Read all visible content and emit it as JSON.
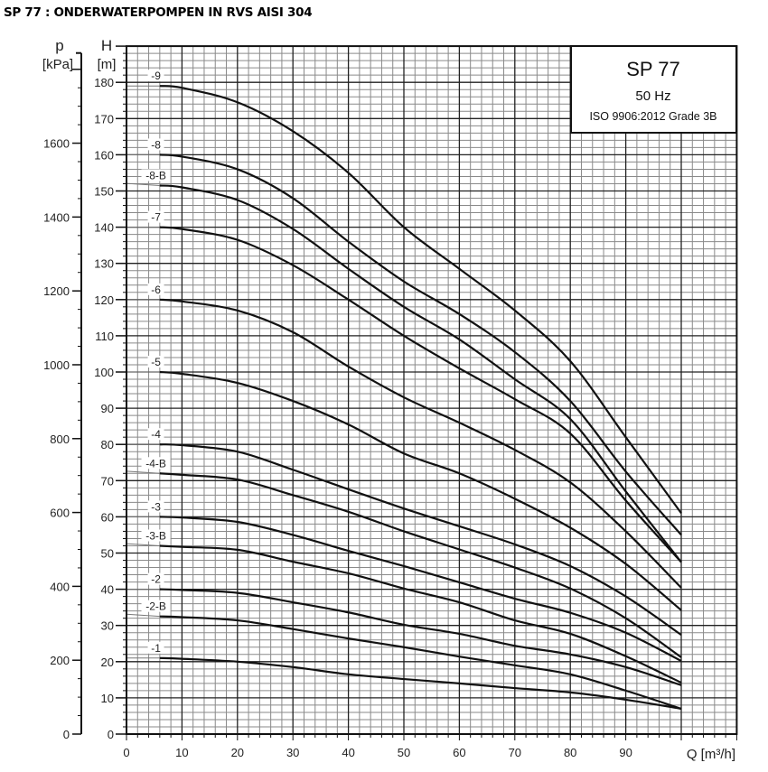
{
  "page_title": "SP 77 : ONDERWATERPOMPEN IN RVS AISI 304",
  "chart_data": {
    "type": "line",
    "title_box": {
      "model": "SP 77",
      "frequency": "50 Hz",
      "standard": "ISO 9906:2012 Grade 3B"
    },
    "xlabel": "Q [m³/h]",
    "ylabel_symbol": "H",
    "ylabel_unit": "[m]",
    "y2label_symbol": "p",
    "y2label_unit": "[kPa]",
    "xlim": [
      0,
      110
    ],
    "ylim": [
      0,
      190
    ],
    "x_ticks": [
      "0",
      "10",
      "20",
      "30",
      "40",
      "50",
      "60",
      "70",
      "80",
      "90"
    ],
    "y_ticks": [
      "0",
      "10",
      "20",
      "30",
      "40",
      "50",
      "60",
      "70",
      "80",
      "90",
      "100",
      "110",
      "120",
      "130",
      "140",
      "150",
      "160",
      "170",
      "180"
    ],
    "y2_ticks": [
      "0",
      "200",
      "400",
      "600",
      "800",
      "1000",
      "1200",
      "1400",
      "1600"
    ],
    "grid": true,
    "x": [
      6,
      10,
      20,
      30,
      40,
      50,
      60,
      70,
      80,
      90,
      100
    ],
    "series": [
      {
        "name": "-9",
        "values": [
          179,
          178.5,
          174.5,
          166.5,
          155,
          140,
          128.5,
          117,
          103,
          82,
          61
        ]
      },
      {
        "name": "-8",
        "values": [
          160,
          159.5,
          156,
          148,
          136,
          125,
          116,
          105.5,
          92,
          72.5,
          55
        ]
      },
      {
        "name": "-8-B",
        "values": [
          151.5,
          151,
          147.5,
          139.5,
          128.5,
          118,
          109,
          98,
          87,
          67,
          47.5
        ]
      },
      {
        "name": "-7",
        "values": [
          140,
          139.5,
          136.5,
          129.5,
          120,
          110,
          101,
          92.5,
          83,
          64.5,
          47.5
        ]
      },
      {
        "name": "-6",
        "values": [
          120,
          119.5,
          117,
          111,
          101.5,
          93,
          86,
          78.5,
          69.5,
          56,
          40.4
        ]
      },
      {
        "name": "-5",
        "values": [
          100,
          99.5,
          97,
          92,
          85.5,
          77.5,
          72,
          65,
          57,
          47,
          34.2
        ]
      },
      {
        "name": "-4",
        "values": [
          80,
          79.8,
          78,
          73,
          67.6,
          62.3,
          57.4,
          52.4,
          46.4,
          38,
          27.4
        ]
      },
      {
        "name": "-4-B",
        "values": [
          72,
          71.6,
          70.3,
          66,
          61.4,
          56,
          51,
          46,
          40.2,
          32,
          21.2
        ]
      },
      {
        "name": "-3",
        "values": [
          60,
          59.8,
          58.6,
          55,
          50.6,
          46.4,
          41.9,
          37.4,
          33.5,
          28,
          20.2
        ]
      },
      {
        "name": "-3-B",
        "values": [
          52,
          51.7,
          50.9,
          47.6,
          44.4,
          40.2,
          36.4,
          31.4,
          27.7,
          21.5,
          14.2
        ]
      },
      {
        "name": "-2",
        "values": [
          40,
          39.8,
          39,
          36.4,
          33.6,
          30.2,
          27.7,
          24.4,
          22,
          18.5,
          13.5
        ]
      },
      {
        "name": "-2-B",
        "values": [
          32.5,
          32.3,
          31.4,
          29,
          26.4,
          24,
          21.4,
          19,
          16.5,
          12,
          7
        ]
      },
      {
        "name": "-1",
        "values": [
          21,
          20.8,
          20,
          18.5,
          16.5,
          15.2,
          14,
          12.7,
          11.5,
          9.5,
          7
        ]
      }
    ],
    "colors": {
      "curve": "#111111",
      "grid_major": "#222222",
      "grid_minor": "#8a8a8a"
    }
  }
}
